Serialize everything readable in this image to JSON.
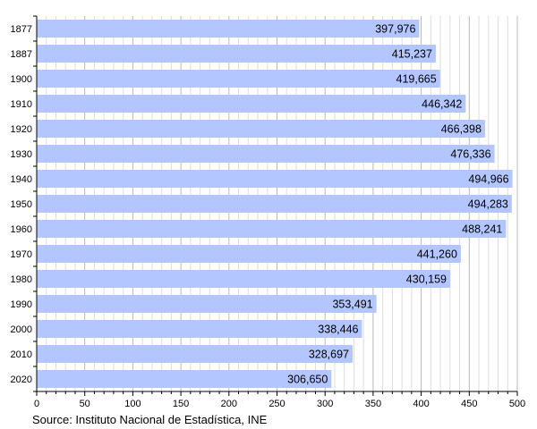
{
  "chart_data": {
    "type": "bar",
    "orientation": "horizontal",
    "categories": [
      "1877",
      "1887",
      "1900",
      "1910",
      "1920",
      "1930",
      "1940",
      "1950",
      "1960",
      "1970",
      "1980",
      "1990",
      "2000",
      "2010",
      "2020"
    ],
    "values": [
      397.976,
      415.237,
      419.665,
      446.342,
      466.398,
      476.336,
      494.966,
      494.283,
      488.241,
      441.26,
      430.159,
      353.491,
      338.446,
      328.697,
      306.65
    ],
    "value_labels": [
      "397,976",
      "415,237",
      "419,665",
      "446,342",
      "466,398",
      "476,336",
      "494,966",
      "494,283",
      "488,241",
      "441,260",
      "430,159",
      "353,491",
      "338,446",
      "328,697",
      "306,650"
    ],
    "x_ticks": [
      "0",
      "50",
      "100",
      "150",
      "200",
      "250",
      "300",
      "350",
      "400",
      "450",
      "500"
    ],
    "xlim": [
      0,
      500
    ],
    "grid": "vertical minor + major",
    "bar_color": "#b3c6ff",
    "source": "Source: Instituto Nacional de Estadística, INE"
  }
}
